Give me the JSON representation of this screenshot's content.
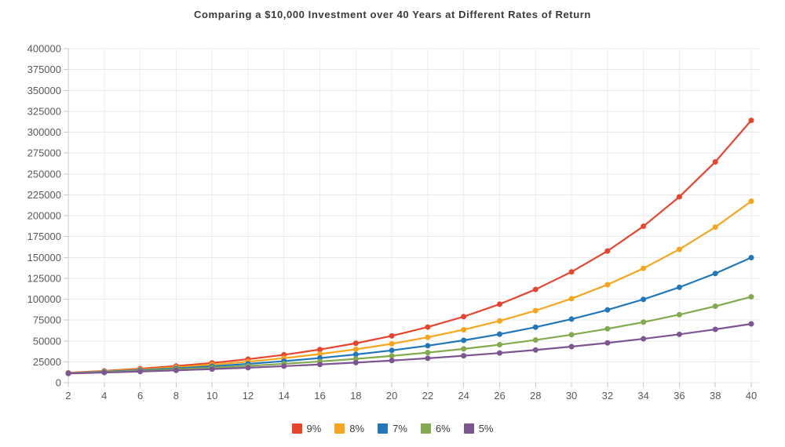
{
  "title": "Comparing a $10,000 Investment over 40 Years at Different Rates of Return",
  "chart_data": {
    "type": "line",
    "title": "Comparing a $10,000 Investment over 40 Years at Different Rates of Return",
    "xlabel": "",
    "ylabel": "",
    "x": [
      2,
      4,
      6,
      8,
      10,
      12,
      14,
      16,
      18,
      20,
      22,
      24,
      26,
      28,
      30,
      32,
      34,
      36,
      38,
      40
    ],
    "xlim": [
      2,
      40
    ],
    "ylim": [
      0,
      400000
    ],
    "y_tick_step": 25000,
    "grid": true,
    "legend_position": "bottom",
    "marker": "circle",
    "series": [
      {
        "name": "9%",
        "color": "#e8442d",
        "values": [
          11881,
          14116,
          16771,
          19926,
          23674,
          28127,
          33417,
          39703,
          47171,
          56044,
          66586,
          79111,
          93992,
          111671,
          132677,
          157633,
          187284,
          222512,
          264367,
          314094
        ]
      },
      {
        "name": "8%",
        "color": "#f7a51c",
        "values": [
          11664,
          13605,
          15869,
          18509,
          21589,
          25182,
          29372,
          34259,
          39960,
          46610,
          54365,
          63412,
          73964,
          86271,
          100627,
          117371,
          136901,
          159682,
          186253,
          217245
        ]
      },
      {
        "name": "7%",
        "color": "#2277b8",
        "values": [
          11449,
          13108,
          15007,
          17182,
          19672,
          22522,
          25785,
          29522,
          33799,
          38697,
          44304,
          50724,
          58074,
          66488,
          76123,
          87153,
          99781,
          114239,
          130793,
          149745
        ]
      },
      {
        "name": "6%",
        "color": "#84aa4f",
        "values": [
          11236,
          12625,
          14185,
          15938,
          17908,
          20122,
          22609,
          25404,
          28543,
          32071,
          36035,
          40489,
          45494,
          51117,
          57435,
          64534,
          72510,
          81473,
          91543,
          102857
        ]
      },
      {
        "name": "5%",
        "color": "#7d5590",
        "values": [
          11025,
          12155,
          13401,
          14775,
          16289,
          17959,
          19799,
          21829,
          24066,
          26533,
          29253,
          32251,
          35557,
          39201,
          43219,
          47649,
          52533,
          57918,
          63855,
          70400
        ]
      }
    ],
    "style": {
      "grid_color": "#e8e8e8",
      "axis_color": "#c9c9c9",
      "tick_label_color": "#595959",
      "title_color": "#3a3a3a"
    }
  }
}
